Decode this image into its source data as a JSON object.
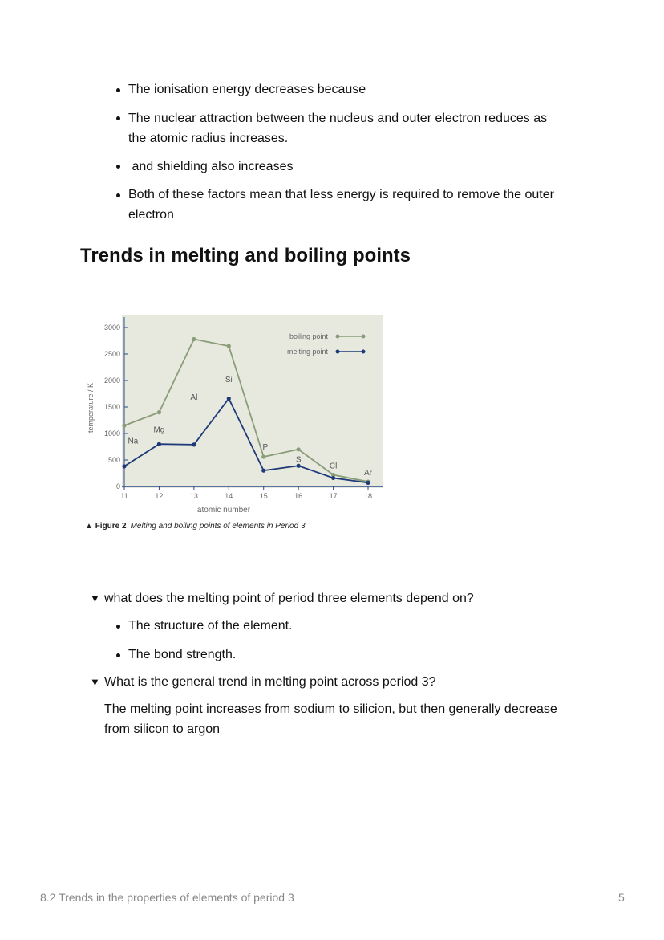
{
  "bullets_top": [
    "The ionisation energy decreases because",
    [
      "The nuclear attraction between the nucleus and outer electron reduces as",
      "the atomic radius increases."
    ],
    " and shielding also increases",
    [
      "Both of these factors mean that less energy is required to remove the outer",
      "electron"
    ]
  ],
  "heading": "Trends in melting and boiling points",
  "chart_data": {
    "type": "line",
    "x": [
      11,
      12,
      13,
      14,
      15,
      16,
      17,
      18
    ],
    "xlabel": "atomic number",
    "ylabel": "temperature / K",
    "ylim": [
      0,
      3000
    ],
    "yticks": [
      0,
      500,
      1000,
      1500,
      2000,
      2500,
      3000
    ],
    "legend_position": "top-right",
    "series": [
      {
        "name": "boiling point",
        "color": "#8a9c78",
        "values": [
          1150,
          1400,
          2780,
          2650,
          560,
          700,
          220,
          90
        ]
      },
      {
        "name": "melting point",
        "color": "#1f3a78",
        "values": [
          380,
          800,
          790,
          1660,
          300,
          390,
          160,
          70
        ]
      }
    ],
    "element_labels": [
      {
        "text": "Na",
        "x": 11.25,
        "y": 870
      },
      {
        "text": "Mg",
        "x": 12,
        "y": 1080
      },
      {
        "text": "Al",
        "x": 13,
        "y": 1700
      },
      {
        "text": "Si",
        "x": 14,
        "y": 2030
      },
      {
        "text": "P",
        "x": 15.05,
        "y": 760
      },
      {
        "text": "S",
        "x": 16,
        "y": 520
      },
      {
        "text": "Cl",
        "x": 17,
        "y": 400
      },
      {
        "text": "Ar",
        "x": 18,
        "y": 270
      }
    ],
    "background": "#e7e9df",
    "caption_label": "Figure 2",
    "caption_text": "Melting and boiling points of elements in Period 3"
  },
  "toggles": [
    {
      "question": "what does the melting point of period three elements depend on?",
      "answers": [
        "The structure of the element.",
        "The bond strength."
      ]
    },
    {
      "question": "What is the general trend in melting point across period 3?",
      "answer_lines": [
        "The melting point increases from sodium to silicion, but then generally decrease",
        "from silicon to argon"
      ]
    }
  ],
  "footer": {
    "title": "8.2 Trends in the properties of elements of period 3",
    "page": "5"
  }
}
